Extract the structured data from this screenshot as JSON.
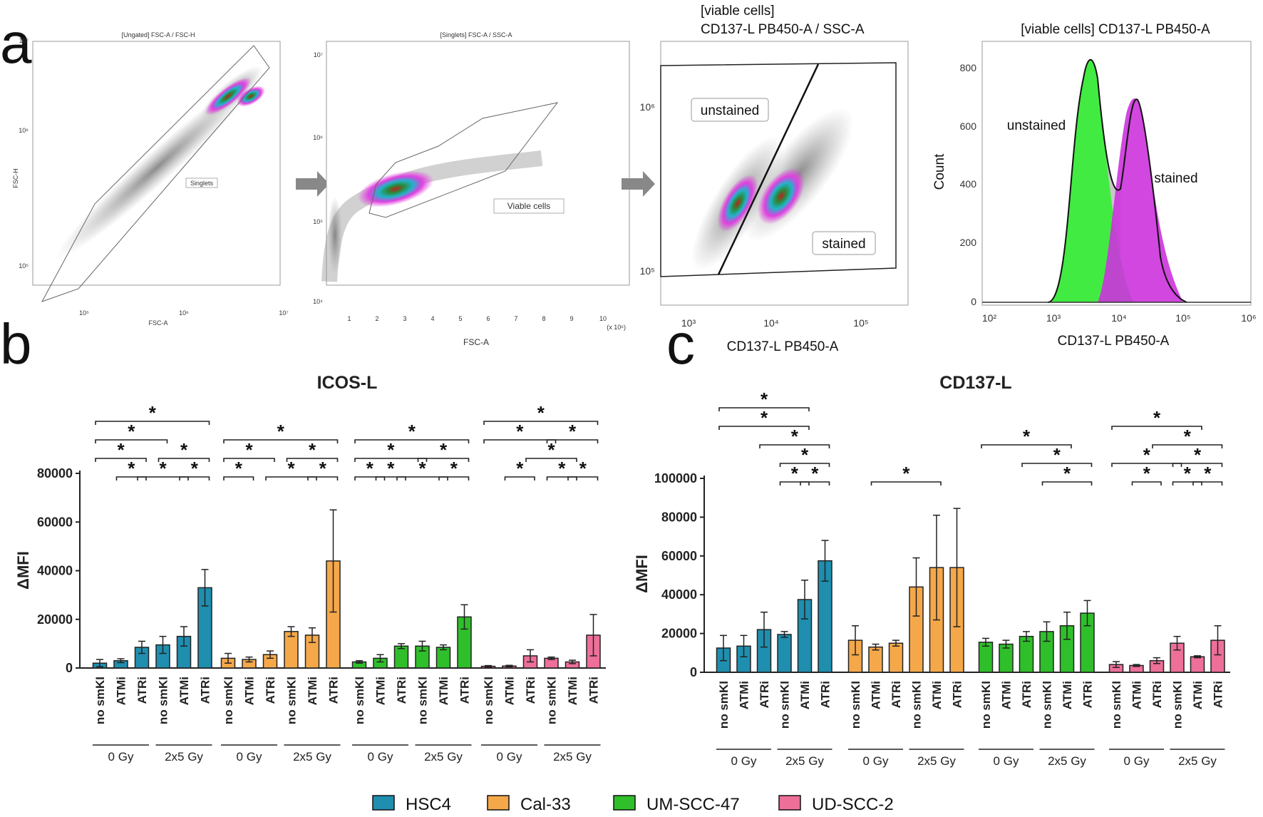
{
  "panel_labels": {
    "a": "a",
    "b": "b",
    "c": "c"
  },
  "flow": {
    "p1": {
      "title": "[Ungated] FSC-A / FSC-H",
      "xlabel": "FSC-A",
      "ylabel": "FSC-H",
      "gate": "Singlets",
      "xticks": [
        "10⁵",
        "10⁶",
        "10⁷"
      ],
      "yticks": [
        "10⁵",
        "10⁶",
        "10⁷"
      ]
    },
    "p2": {
      "title": "[Singlets] FSC-A / SSC-A",
      "xlabel": "FSC-A",
      "gate": "Viable cells",
      "xticks": [
        "1",
        "2",
        "3",
        "4",
        "5",
        "6",
        "7",
        "8",
        "9",
        "10"
      ],
      "xunit": "(x 10⁶)",
      "yticks": [
        "10⁷",
        "10⁶",
        "10⁵",
        "10⁴"
      ]
    },
    "p3": {
      "title_line1": "[viable cells]",
      "title_line2": "CD137-L  PB450-A / SSC-A",
      "gate_unstained": "unstained",
      "gate_stained": "stained",
      "xlabel": "CD137-L  PB450-A",
      "xticks": [
        "10³",
        "10⁴",
        "10⁵"
      ],
      "yticks": [
        "10⁶",
        "10⁵"
      ]
    },
    "p4": {
      "title": "[viable cells] CD137-L  PB450-A",
      "ylabel": "Count",
      "xlabel": "CD137-L  PB450-A",
      "label_unstained": "unstained",
      "label_stained": "stained",
      "yticks": [
        "800",
        "600",
        "400",
        "200",
        "0"
      ],
      "xticks": [
        "10²",
        "10³",
        "10⁴",
        "10⁵",
        "10⁶"
      ]
    }
  },
  "chart_data": [
    {
      "type": "bar",
      "title": "ICOS-L",
      "ylabel": "ΔMFI",
      "ylim": [
        0,
        80000
      ],
      "yticks": [
        "0",
        "20000",
        "40000",
        "60000",
        "80000"
      ],
      "treatments": [
        "no smKI",
        "ATMi",
        "ATRi"
      ],
      "doses": [
        "0 Gy",
        "2x5 Gy"
      ],
      "groups": [
        {
          "cell_line": "HSC4",
          "values": [
            2000,
            3000,
            8500,
            9500,
            13000,
            33000
          ],
          "errors": [
            1500,
            800,
            2500,
            3500,
            4000,
            7500
          ]
        },
        {
          "cell_line": "Cal-33",
          "values": [
            4000,
            3500,
            5500,
            15000,
            13500,
            44000
          ],
          "errors": [
            2000,
            1000,
            1500,
            2000,
            3000,
            21000
          ]
        },
        {
          "cell_line": "UM-SCC-47",
          "values": [
            2500,
            4000,
            9000,
            9000,
            8500,
            21000
          ],
          "errors": [
            500,
            1500,
            1000,
            2000,
            1000,
            5000
          ]
        },
        {
          "cell_line": "UD-SCC-2",
          "values": [
            700,
            800,
            5000,
            4000,
            2500,
            13500
          ],
          "errors": [
            300,
            300,
            2500,
            500,
            700,
            8500
          ]
        }
      ]
    },
    {
      "type": "bar",
      "title": "CD137-L",
      "ylabel": "ΔMFI",
      "ylim": [
        0,
        100000
      ],
      "yticks": [
        "0",
        "20000",
        "40000",
        "60000",
        "80000",
        "100000"
      ],
      "treatments": [
        "no smKI",
        "ATMi",
        "ATRi"
      ],
      "doses": [
        "0 Gy",
        "2x5 Gy"
      ],
      "groups": [
        {
          "cell_line": "HSC4",
          "values": [
            12500,
            13500,
            22000,
            19500,
            37500,
            57500
          ],
          "errors": [
            6500,
            5500,
            9000,
            1500,
            10000,
            10500
          ]
        },
        {
          "cell_line": "Cal-33",
          "values": [
            16500,
            13000,
            15000,
            44000,
            54000,
            54000
          ],
          "errors": [
            7500,
            1500,
            1500,
            15000,
            27000,
            30500
          ]
        },
        {
          "cell_line": "UM-SCC-47",
          "values": [
            15500,
            14500,
            18500,
            21000,
            24000,
            30500
          ],
          "errors": [
            2000,
            2000,
            2500,
            5000,
            7000,
            6500
          ]
        },
        {
          "cell_line": "UD-SCC-2",
          "values": [
            4000,
            3500,
            6000,
            15000,
            8000,
            16500
          ],
          "errors": [
            1500,
            500,
            1500,
            3500,
            500,
            7500
          ]
        }
      ]
    }
  ],
  "significance_marker": "*",
  "legend": [
    {
      "label": "HSC4",
      "color": "#1f8eaf"
    },
    {
      "label": "Cal-33",
      "color": "#f5a84a"
    },
    {
      "label": "UM-SCC-47",
      "color": "#2fbf2a"
    },
    {
      "label": "UD-SCC-2",
      "color": "#ee6f98"
    }
  ]
}
